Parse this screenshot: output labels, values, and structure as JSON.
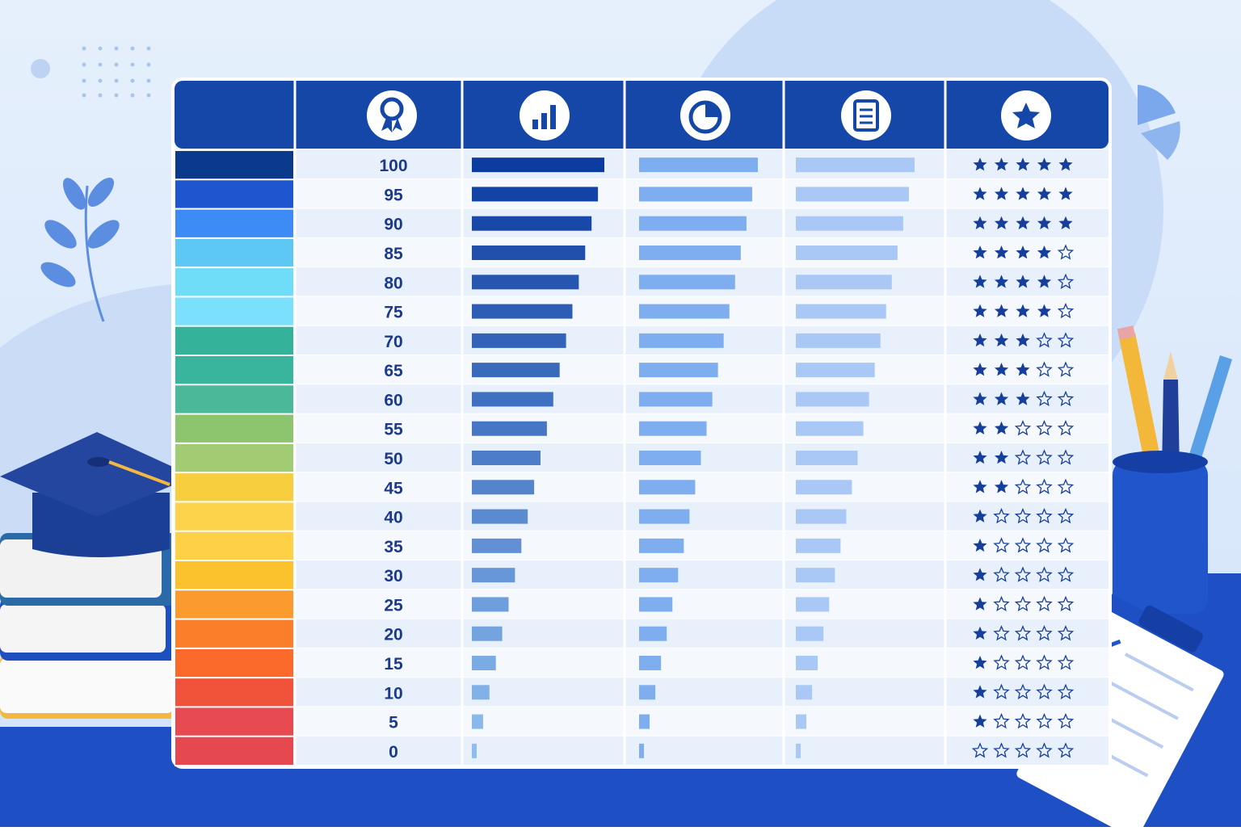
{
  "table": {
    "rows": [
      {
        "score": 100,
        "stars": 5,
        "color": "#0b3a8c"
      },
      {
        "score": 95,
        "stars": 5,
        "color": "#1f56d0"
      },
      {
        "score": 90,
        "stars": 5,
        "color": "#3d8bf5"
      },
      {
        "score": 85,
        "stars": 4,
        "color": "#5ec8f5"
      },
      {
        "score": 80,
        "stars": 4,
        "color": "#6fdcf8"
      },
      {
        "score": 75,
        "stars": 4,
        "color": "#7ae0fb"
      },
      {
        "score": 70,
        "stars": 3,
        "color": "#35b29a"
      },
      {
        "score": 65,
        "stars": 3,
        "color": "#38b59c"
      },
      {
        "score": 60,
        "stars": 3,
        "color": "#4bb89a"
      },
      {
        "score": 55,
        "stars": 2,
        "color": "#8dc46e"
      },
      {
        "score": 50,
        "stars": 2,
        "color": "#a2cc74"
      },
      {
        "score": 45,
        "stars": 2,
        "color": "#f7cf3e"
      },
      {
        "score": 40,
        "stars": 1,
        "color": "#fcd34a"
      },
      {
        "score": 35,
        "stars": 1,
        "color": "#fdd046"
      },
      {
        "score": 30,
        "stars": 1,
        "color": "#fbc22e"
      },
      {
        "score": 25,
        "stars": 1,
        "color": "#fb9a2e"
      },
      {
        "score": 20,
        "stars": 1,
        "color": "#fb7f2a"
      },
      {
        "score": 15,
        "stars": 1,
        "color": "#fb6a2a"
      },
      {
        "score": 10,
        "stars": 1,
        "color": "#f0533a"
      },
      {
        "score": 5,
        "stars": 1,
        "color": "#e84a52"
      },
      {
        "score": 0,
        "stars": 0,
        "color": "#e5484f"
      }
    ]
  }
}
